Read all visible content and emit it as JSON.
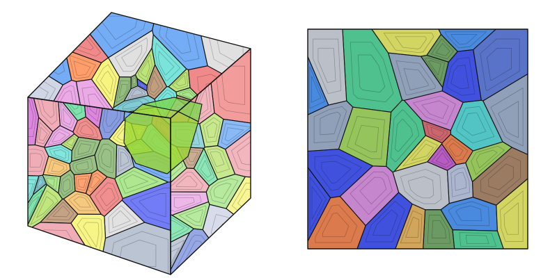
{
  "figure": {
    "panels": [
      {
        "name": "voronoi-cube-3d",
        "kind": "3d-cube"
      },
      {
        "name": "voronoi-slice-2d",
        "kind": "square-slice"
      }
    ],
    "palette": [
      "#3f5fd0",
      "#f2ef3a",
      "#7bd84a",
      "#e84b4b",
      "#33d6c8",
      "#e07bd8",
      "#a06a3a",
      "#8fa0b8",
      "#2fd27a",
      "#ff6a1a",
      "#c83cc8",
      "#1a2cf0",
      "#9ad630",
      "#e87a8a",
      "#3fb0c0",
      "#b8c0d8",
      "#f0a830",
      "#5a9a3a",
      "#2a80f0",
      "#d0d0d0"
    ]
  }
}
